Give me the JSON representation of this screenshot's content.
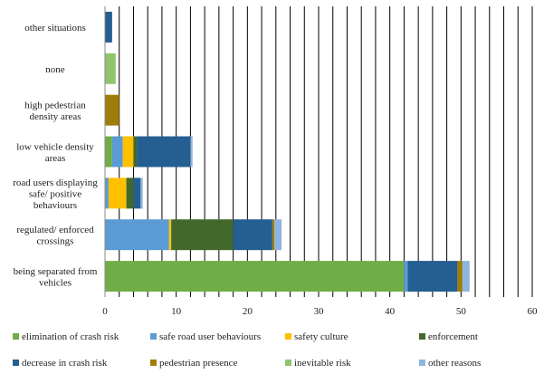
{
  "chart_data": {
    "type": "bar",
    "orientation": "horizontal",
    "stacked": true,
    "categories": [
      "other situations",
      "none",
      "high pedestrian density areas",
      "low vehicle density areas",
      "road users displaying safe/ positive behaviours",
      "regulated/ enforced crossings",
      "being separated from vehicles"
    ],
    "category_lines": [
      [
        "other situations"
      ],
      [
        "none"
      ],
      [
        "high pedestrian",
        "density areas"
      ],
      [
        "low vehicle density",
        "areas"
      ],
      [
        "road users displaying",
        "safe/ positive",
        "behaviours"
      ],
      [
        "regulated/ enforced",
        "crossings"
      ],
      [
        "being separated from",
        "vehicles"
      ]
    ],
    "series": [
      {
        "name": "elimination of crash risk",
        "color": "#70ad47",
        "values": [
          0,
          0,
          0,
          1,
          0,
          0,
          42
        ]
      },
      {
        "name": "safe road user behaviours",
        "color": "#5b9bd5",
        "values": [
          0,
          0,
          0,
          1.5,
          0.5,
          9,
          0.5
        ]
      },
      {
        "name": "safety culture",
        "color": "#ffc000",
        "values": [
          0,
          0,
          0,
          1.5,
          2.5,
          0.3,
          0
        ]
      },
      {
        "name": "enforcement",
        "color": "#43682b",
        "values": [
          0,
          0,
          0,
          0.5,
          1,
          8.7,
          0
        ]
      },
      {
        "name": "decrease in crash risk",
        "color": "#255e91",
        "values": [
          1,
          0,
          0,
          7.5,
          1,
          5.5,
          7
        ]
      },
      {
        "name": "pedestrian presence",
        "color": "#9e7d0a",
        "values": [
          0,
          0,
          2,
          0,
          0,
          0.3,
          0.7
        ]
      },
      {
        "name": "inevitable risk",
        "color": "#8fc46d",
        "values": [
          0,
          1.5,
          0,
          0,
          0,
          0,
          0
        ]
      },
      {
        "name": "other reasons",
        "color": "#8fb5dd",
        "values": [
          0,
          0,
          0,
          0.3,
          0.3,
          1,
          1
        ]
      }
    ],
    "xlim": [
      0,
      60
    ],
    "xticks": [
      0,
      10,
      20,
      30,
      40,
      50,
      60
    ],
    "x_gridlines_every": 2,
    "grid": true,
    "legend_position": "bottom",
    "title": "",
    "xlabel": "",
    "ylabel": ""
  }
}
